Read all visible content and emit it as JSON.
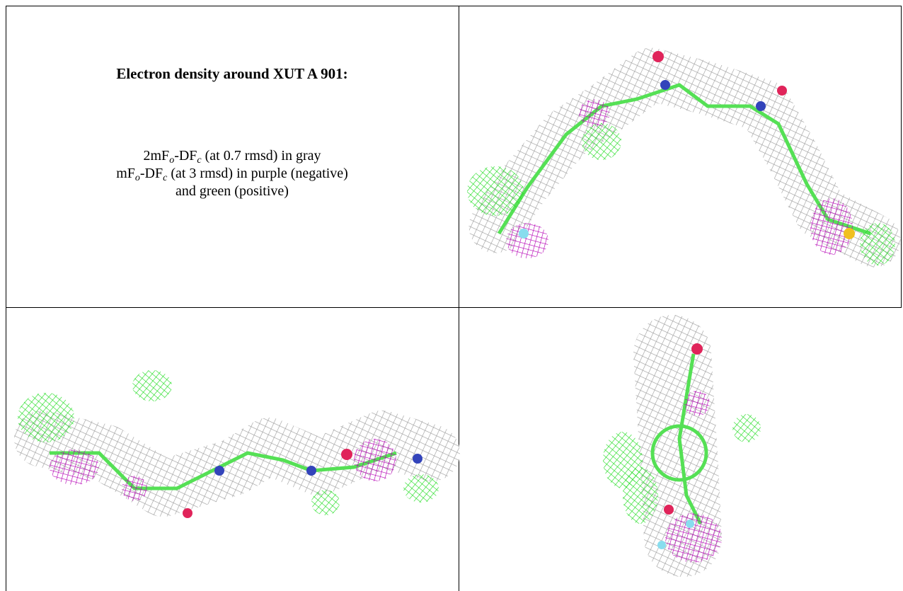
{
  "header": {
    "title": "Electron density around XUT A 901:"
  },
  "legend": {
    "lines": [
      [
        "2mF",
        "o",
        "-DF",
        "c",
        " (at 0.7 rmsd) in gray"
      ],
      [
        "mF",
        "o",
        "-DF",
        "c",
        " (at 3 rmsd) in purple (negative)"
      ],
      [
        "and green (positive)"
      ]
    ]
  }
}
